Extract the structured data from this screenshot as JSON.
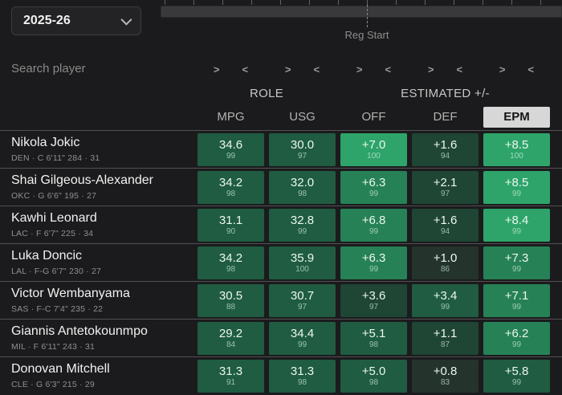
{
  "toolbar": {
    "season": "2025-26",
    "timeline_label": "Reg Start"
  },
  "search": {
    "placeholder": "Search player"
  },
  "sort": {
    "asc": ">",
    "desc": "<"
  },
  "colors": {
    "selected_header_bg": "#d7d7d7",
    "selected_header_text": "#141414"
  },
  "palette": {
    "t0": "#24342c",
    "t1": "#1f4534",
    "t2": "#1f5c42",
    "t3": "#268156",
    "t4": "#2ea46a"
  },
  "table": {
    "groups": [
      {
        "label": "ROLE",
        "span": 2
      },
      {
        "label": "ESTIMATED +/-",
        "span": 3
      }
    ],
    "columns": [
      "MPG",
      "USG",
      "OFF",
      "DEF",
      "EPM"
    ],
    "selected_column": "EPM",
    "players": [
      {
        "name": "Nikola Jokic",
        "details": "DEN · C 6'11\" 284 · 31",
        "stats": [
          {
            "v": "34.6",
            "p": 99,
            "tone": "t2"
          },
          {
            "v": "30.0",
            "p": 97,
            "tone": "t2"
          },
          {
            "v": "+7.0",
            "p": 100,
            "tone": "t4"
          },
          {
            "v": "+1.6",
            "p": 94,
            "tone": "t1"
          },
          {
            "v": "+8.5",
            "p": 100,
            "tone": "t4"
          }
        ]
      },
      {
        "name": "Shai Gilgeous-Alexander",
        "details": "OKC · G 6'6\" 195 · 27",
        "stats": [
          {
            "v": "34.2",
            "p": 98,
            "tone": "t2"
          },
          {
            "v": "32.0",
            "p": 98,
            "tone": "t2"
          },
          {
            "v": "+6.3",
            "p": 99,
            "tone": "t3"
          },
          {
            "v": "+2.1",
            "p": 97,
            "tone": "t1"
          },
          {
            "v": "+8.5",
            "p": 99,
            "tone": "t4"
          }
        ]
      },
      {
        "name": "Kawhi Leonard",
        "details": "LAC · F 6'7\" 225 · 34",
        "stats": [
          {
            "v": "31.1",
            "p": 90,
            "tone": "t2"
          },
          {
            "v": "32.8",
            "p": 99,
            "tone": "t2"
          },
          {
            "v": "+6.8",
            "p": 99,
            "tone": "t3"
          },
          {
            "v": "+1.6",
            "p": 94,
            "tone": "t1"
          },
          {
            "v": "+8.4",
            "p": 99,
            "tone": "t4"
          }
        ]
      },
      {
        "name": "Luka Doncic",
        "details": "LAL · F-G 6'7\" 230 · 27",
        "stats": [
          {
            "v": "34.2",
            "p": 98,
            "tone": "t2"
          },
          {
            "v": "35.9",
            "p": 100,
            "tone": "t2"
          },
          {
            "v": "+6.3",
            "p": 99,
            "tone": "t3"
          },
          {
            "v": "+1.0",
            "p": 86,
            "tone": "t0"
          },
          {
            "v": "+7.3",
            "p": 99,
            "tone": "t3"
          }
        ]
      },
      {
        "name": "Victor Wembanyama",
        "details": "SAS · F-C 7'4\" 235 · 22",
        "stats": [
          {
            "v": "30.5",
            "p": 88,
            "tone": "t2"
          },
          {
            "v": "30.7",
            "p": 97,
            "tone": "t2"
          },
          {
            "v": "+3.6",
            "p": 97,
            "tone": "t1"
          },
          {
            "v": "+3.4",
            "p": 99,
            "tone": "t2"
          },
          {
            "v": "+7.1",
            "p": 99,
            "tone": "t3"
          }
        ]
      },
      {
        "name": "Giannis Antetokounmpo",
        "details": "MIL · F 6'11\" 243 · 31",
        "stats": [
          {
            "v": "29.2",
            "p": 84,
            "tone": "t2"
          },
          {
            "v": "34.4",
            "p": 99,
            "tone": "t2"
          },
          {
            "v": "+5.1",
            "p": 98,
            "tone": "t2"
          },
          {
            "v": "+1.1",
            "p": 87,
            "tone": "t1"
          },
          {
            "v": "+6.2",
            "p": 99,
            "tone": "t3"
          }
        ]
      },
      {
        "name": "Donovan Mitchell",
        "details": "CLE · G 6'3\" 215 · 29",
        "stats": [
          {
            "v": "31.3",
            "p": 91,
            "tone": "t2"
          },
          {
            "v": "31.3",
            "p": 98,
            "tone": "t2"
          },
          {
            "v": "+5.0",
            "p": 98,
            "tone": "t2"
          },
          {
            "v": "+0.8",
            "p": 83,
            "tone": "t0"
          },
          {
            "v": "+5.8",
            "p": 99,
            "tone": "t2"
          }
        ]
      }
    ]
  }
}
